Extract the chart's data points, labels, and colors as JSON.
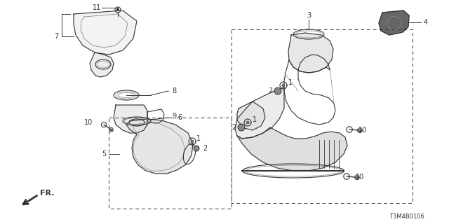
{
  "bg_color": "#ffffff",
  "diagram_code": "T3M4B0106",
  "line_color": "#333333",
  "gray": "#888888",
  "light_gray": "#bbbbbb"
}
